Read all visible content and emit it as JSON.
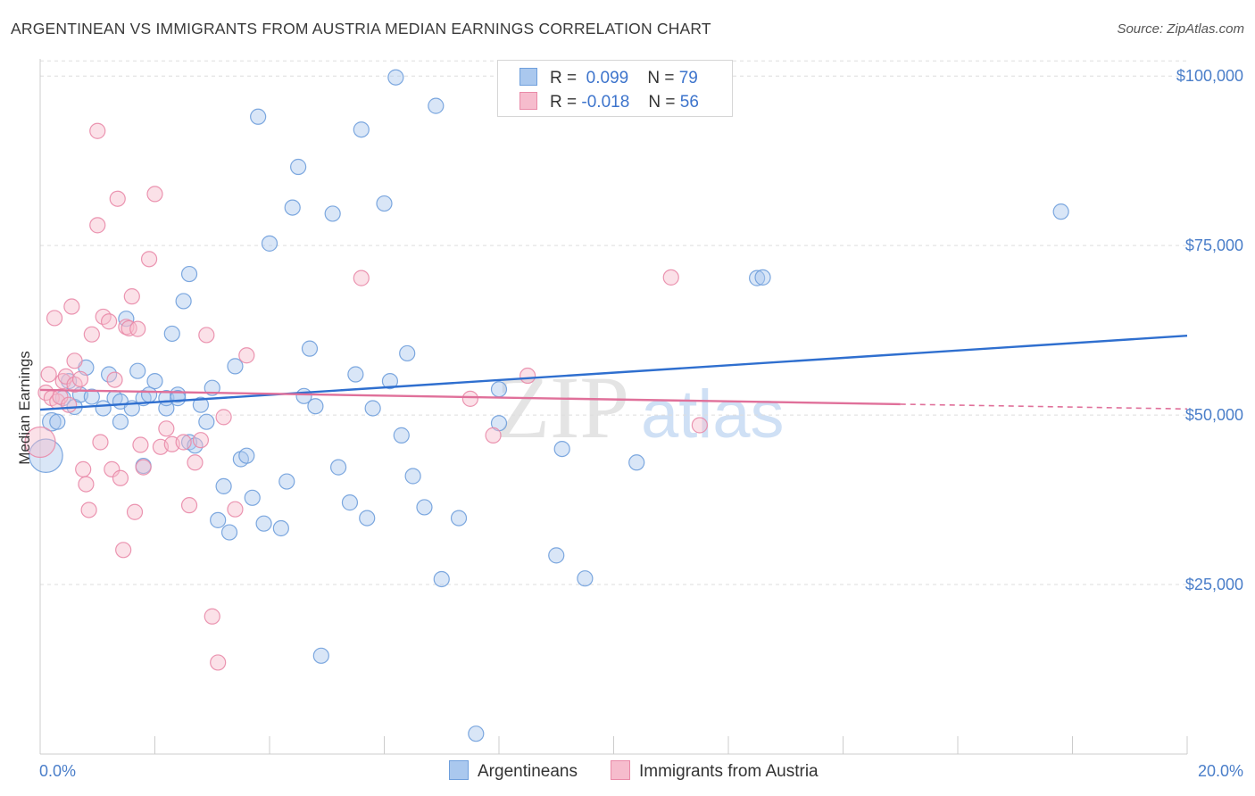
{
  "title": "ARGENTINEAN VS IMMIGRANTS FROM AUSTRIA MEDIAN EARNINGS CORRELATION CHART",
  "source": "Source: ZipAtlas.com",
  "watermark": {
    "zip": "ZIP",
    "atlas": "atlas"
  },
  "legend": {
    "r_label": "R =",
    "n_label": "N =",
    "rows": [
      {
        "r": "0.099",
        "n": "79"
      },
      {
        "r": "-0.018",
        "n": "56"
      }
    ]
  },
  "bottom_legend": [
    "Argentineans",
    "Immigrants from Austria"
  ],
  "colors": {
    "blue_fill": "#aac8ee",
    "blue_stroke": "#6f9fdc",
    "blue_line": "#2f6fcf",
    "pink_fill": "#f6bccd",
    "pink_stroke": "#e98aa8",
    "pink_line": "#e0709a",
    "tick_text": "#4a7ec9",
    "grid": "#dddddd"
  },
  "chart_data": {
    "type": "scatter",
    "xlabel": "",
    "ylabel": "Median Earnings",
    "xlim": [
      0,
      20
    ],
    "ylim": [
      0,
      102000
    ],
    "x_tick_labels": [
      "0.0%",
      "20.0%"
    ],
    "y_ticks": [
      {
        "value": 25000,
        "label": "$25,000"
      },
      {
        "value": 50000,
        "label": "$50,000"
      },
      {
        "value": 75000,
        "label": "$75,000"
      },
      {
        "value": 100000,
        "label": "$100,000"
      }
    ],
    "grid": "horizontal dashed",
    "legend_placement": "top-center",
    "series": [
      {
        "name": "Argentineans",
        "r": 0.099,
        "n": 79,
        "trend": {
          "x": [
            0,
            20
          ],
          "y": [
            50800,
            61700
          ],
          "dashed_from": null
        },
        "points": [
          [
            0.1,
            44000,
            22
          ],
          [
            0.2,
            49000,
            12
          ],
          [
            0.3,
            49000,
            10
          ],
          [
            0.4,
            52500,
            10
          ],
          [
            0.5,
            55000,
            10
          ],
          [
            0.6,
            51200,
            10
          ],
          [
            0.7,
            53000,
            10
          ],
          [
            0.8,
            57000,
            10
          ],
          [
            0.9,
            52700,
            10
          ],
          [
            1.1,
            51000,
            10
          ],
          [
            1.2,
            56000,
            10
          ],
          [
            1.3,
            52500,
            10
          ],
          [
            1.4,
            52000,
            10
          ],
          [
            1.4,
            49000,
            10
          ],
          [
            1.5,
            64200,
            10
          ],
          [
            1.6,
            51000,
            10
          ],
          [
            1.7,
            56500,
            10
          ],
          [
            1.8,
            42500,
            10
          ],
          [
            1.8,
            52500,
            10
          ],
          [
            1.9,
            53000,
            10
          ],
          [
            2.0,
            55000,
            10
          ],
          [
            2.2,
            51000,
            10
          ],
          [
            2.2,
            52500,
            10
          ],
          [
            2.3,
            62000,
            10
          ],
          [
            2.4,
            53000,
            10
          ],
          [
            2.4,
            52500,
            10
          ],
          [
            2.5,
            66800,
            10
          ],
          [
            2.6,
            46000,
            10
          ],
          [
            2.6,
            70800,
            10
          ],
          [
            2.7,
            45500,
            10
          ],
          [
            2.8,
            51500,
            10
          ],
          [
            2.9,
            49000,
            10
          ],
          [
            3.0,
            54000,
            10
          ],
          [
            3.1,
            34500,
            10
          ],
          [
            3.2,
            39500,
            10
          ],
          [
            3.3,
            32700,
            10
          ],
          [
            3.4,
            57200,
            10
          ],
          [
            3.5,
            43500,
            10
          ],
          [
            3.6,
            44000,
            10
          ],
          [
            3.7,
            37800,
            10
          ],
          [
            3.8,
            94000,
            10
          ],
          [
            3.9,
            34000,
            10
          ],
          [
            4.0,
            75300,
            10
          ],
          [
            4.2,
            33300,
            10
          ],
          [
            4.3,
            40200,
            10
          ],
          [
            4.4,
            80600,
            10
          ],
          [
            4.5,
            86600,
            10
          ],
          [
            4.6,
            52800,
            10
          ],
          [
            4.7,
            59800,
            10
          ],
          [
            4.8,
            51300,
            10
          ],
          [
            4.9,
            14500,
            10
          ],
          [
            5.1,
            79700,
            10
          ],
          [
            5.2,
            42300,
            10
          ],
          [
            5.4,
            37100,
            10
          ],
          [
            5.5,
            56000,
            10
          ],
          [
            5.6,
            92100,
            10
          ],
          [
            5.7,
            34800,
            10
          ],
          [
            5.8,
            51000,
            10
          ],
          [
            6.0,
            81200,
            10
          ],
          [
            6.1,
            55000,
            10
          ],
          [
            6.2,
            99800,
            10
          ],
          [
            6.3,
            47000,
            10
          ],
          [
            6.4,
            59100,
            10
          ],
          [
            6.5,
            41000,
            10
          ],
          [
            6.7,
            36400,
            10
          ],
          [
            6.9,
            95600,
            10
          ],
          [
            7.0,
            25800,
            10
          ],
          [
            7.3,
            34800,
            10
          ],
          [
            7.6,
            3000,
            10
          ],
          [
            8.0,
            53800,
            10
          ],
          [
            8.0,
            48800,
            10
          ],
          [
            8.2,
            95200,
            10
          ],
          [
            9.0,
            29300,
            10
          ],
          [
            9.1,
            45000,
            10
          ],
          [
            9.5,
            25900,
            10
          ],
          [
            10.4,
            43000,
            10
          ],
          [
            12.5,
            70200,
            10
          ],
          [
            12.6,
            70300,
            10
          ],
          [
            17.8,
            80000,
            10
          ]
        ]
      },
      {
        "name": "Immigrants from Austria",
        "r": -0.018,
        "n": 56,
        "trend": {
          "x": [
            0,
            20
          ],
          "y": [
            53700,
            50900
          ],
          "dashed_from": 15
        },
        "points": [
          [
            0.0,
            46000,
            20
          ],
          [
            0.1,
            53300,
            10
          ],
          [
            0.15,
            56000,
            10
          ],
          [
            0.2,
            52500,
            10
          ],
          [
            0.25,
            64300,
            10
          ],
          [
            0.3,
            52000,
            10
          ],
          [
            0.35,
            52700,
            10
          ],
          [
            0.4,
            55000,
            10
          ],
          [
            0.45,
            55700,
            10
          ],
          [
            0.5,
            51500,
            10
          ],
          [
            0.55,
            66000,
            10
          ],
          [
            0.6,
            54500,
            10
          ],
          [
            0.6,
            58000,
            10
          ],
          [
            0.7,
            55300,
            10
          ],
          [
            0.75,
            42000,
            10
          ],
          [
            0.8,
            39800,
            10
          ],
          [
            0.85,
            36000,
            10
          ],
          [
            0.9,
            61900,
            10
          ],
          [
            1.0,
            78000,
            10
          ],
          [
            1.0,
            91900,
            10
          ],
          [
            1.05,
            46000,
            10
          ],
          [
            1.1,
            64500,
            10
          ],
          [
            1.2,
            63800,
            10
          ],
          [
            1.25,
            42000,
            10
          ],
          [
            1.3,
            55200,
            10
          ],
          [
            1.35,
            81900,
            10
          ],
          [
            1.4,
            40700,
            10
          ],
          [
            1.45,
            30100,
            10
          ],
          [
            1.5,
            63000,
            10
          ],
          [
            1.55,
            62800,
            10
          ],
          [
            1.6,
            67500,
            10
          ],
          [
            1.65,
            35700,
            10
          ],
          [
            1.7,
            62700,
            10
          ],
          [
            1.75,
            45600,
            10
          ],
          [
            1.8,
            42300,
            10
          ],
          [
            1.9,
            73000,
            10
          ],
          [
            2.0,
            82600,
            10
          ],
          [
            2.1,
            45300,
            10
          ],
          [
            2.2,
            48000,
            10
          ],
          [
            2.3,
            45700,
            10
          ],
          [
            2.5,
            46000,
            10
          ],
          [
            2.6,
            36700,
            10
          ],
          [
            2.7,
            43000,
            10
          ],
          [
            2.8,
            46300,
            10
          ],
          [
            2.9,
            61800,
            10
          ],
          [
            3.0,
            20300,
            10
          ],
          [
            3.1,
            13500,
            10
          ],
          [
            3.2,
            49700,
            10
          ],
          [
            3.4,
            36100,
            10
          ],
          [
            3.6,
            58800,
            10
          ],
          [
            5.6,
            70200,
            10
          ],
          [
            7.5,
            52400,
            10
          ],
          [
            7.9,
            47000,
            10
          ],
          [
            8.5,
            55800,
            10
          ],
          [
            11.0,
            70300,
            10
          ],
          [
            11.5,
            48500,
            10
          ]
        ]
      }
    ]
  }
}
